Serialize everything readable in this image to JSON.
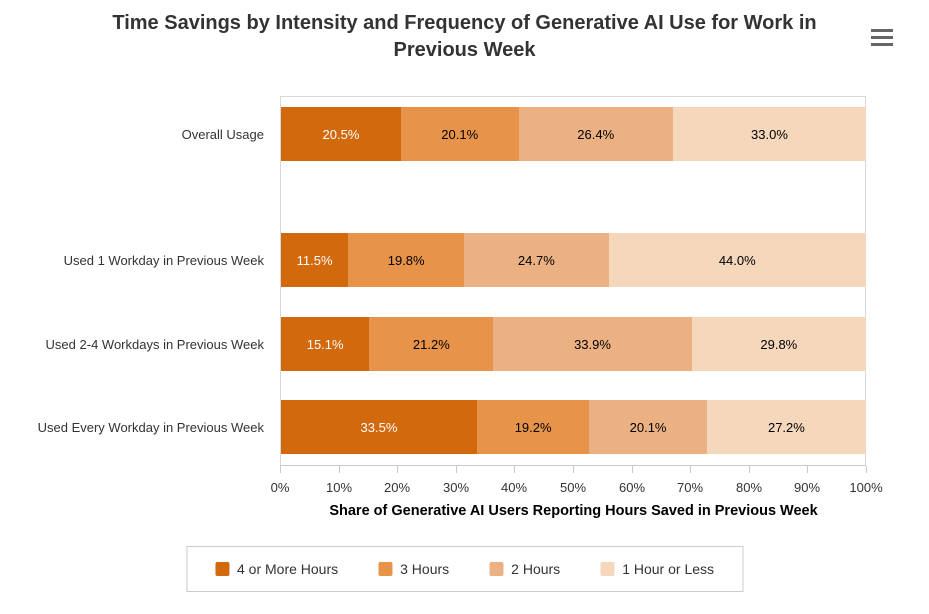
{
  "title": "Time Savings by Intensity and Frequency of Generative AI Use for Work in Previous Week",
  "menu": {
    "icon": "hamburger-menu-icon"
  },
  "chart_data": {
    "type": "bar",
    "orientation": "horizontal",
    "stacked": true,
    "grid": false,
    "legend_position": "bottom",
    "categories": [
      "Overall Usage",
      "Used 1 Workday in Previous Week",
      "Used 2-4 Workdays in Previous Week",
      "Used Every Workday in Previous Week"
    ],
    "series": [
      {
        "name": "4 or More Hours",
        "color": "#D2690D",
        "label_color": "#FFFFFF",
        "values": [
          20.5,
          11.5,
          15.1,
          33.5
        ]
      },
      {
        "name": "3 Hours",
        "color": "#E8934A",
        "label_color": "#000000",
        "values": [
          20.1,
          19.8,
          21.2,
          19.2
        ]
      },
      {
        "name": "2 Hours",
        "color": "#EBB183",
        "label_color": "#000000",
        "values": [
          26.4,
          24.7,
          33.9,
          20.1
        ]
      },
      {
        "name": "1 Hour or Less",
        "color": "#F5D7BC",
        "label_color": "#000000",
        "values": [
          33.0,
          44.0,
          29.8,
          27.2
        ]
      }
    ],
    "value_suffix": "%",
    "xlabel": "Share of Generative AI Users Reporting Hours Saved in Previous Week",
    "x_ticks": [
      "0%",
      "10%",
      "20%",
      "30%",
      "40%",
      "50%",
      "60%",
      "70%",
      "80%",
      "90%",
      "100%"
    ],
    "xlim": [
      0,
      100
    ]
  }
}
